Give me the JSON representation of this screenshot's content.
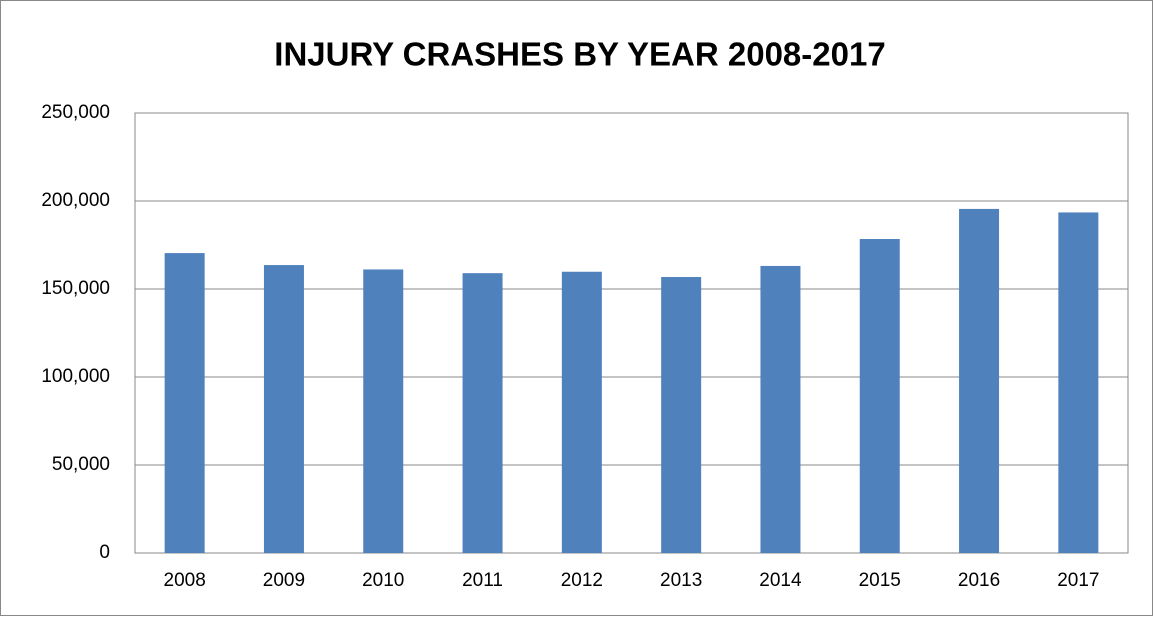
{
  "chart_data": {
    "type": "bar",
    "title": "INJURY CRASHES BY YEAR 2008-2017",
    "categories": [
      "2008",
      "2009",
      "2010",
      "2011",
      "2012",
      "2013",
      "2014",
      "2015",
      "2016",
      "2017"
    ],
    "values": [
      170400,
      163600,
      161100,
      159000,
      159800,
      156800,
      163100,
      178400,
      195500,
      193500
    ],
    "color": "#4f81bd",
    "ylim": [
      0,
      250000
    ],
    "yticks": [
      0,
      {
        "value": 50000,
        "label": "50,000"
      },
      {
        "value": 100000,
        "label": "100,000"
      },
      {
        "value": 150000,
        "label": "150,000"
      },
      {
        "value": 200000,
        "label": "200,000"
      },
      {
        "value": 250000,
        "label": "250,000"
      }
    ],
    "grid": true
  }
}
